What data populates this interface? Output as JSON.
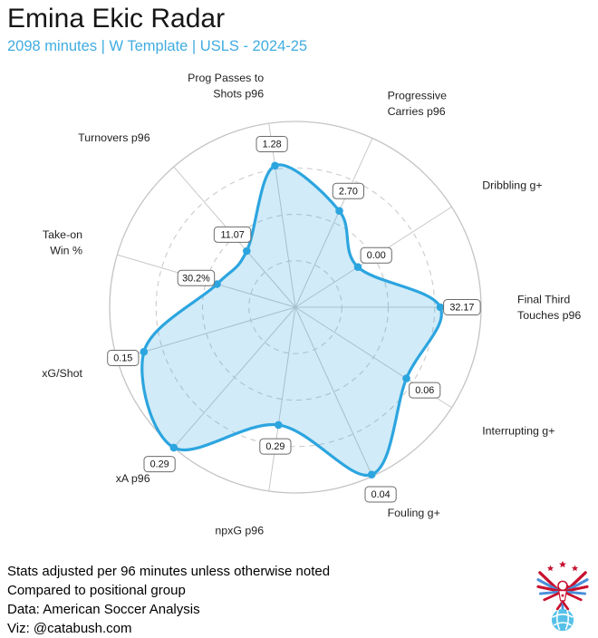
{
  "header": {
    "title": "Emina Ekic Radar",
    "subtitle": "2098 minutes | W Template | USLS - 2024-25"
  },
  "footer": {
    "lines": [
      "Stats adjusted per 96 minutes unless otherwise noted",
      "Compared to positional group",
      "Data: American Soccer Analysis",
      "Viz: @catabush.com"
    ]
  },
  "logo": {
    "description": "American Soccer Analysis eagle with stars and ball"
  },
  "colors": {
    "accent_line": "#2CA5DF",
    "area_fill": "#2CA5DF",
    "subtitle_blue": "#41ACE1",
    "grid": "#C8C8C8",
    "ring_dash": "#CBCBCB",
    "outer_circle": "#C4C4C4",
    "label_box_border": "#6B6B6B",
    "axis_label_text": "#1F1F1F",
    "value_text": "#111111",
    "logo_red": "#C8102E",
    "logo_blue": "#4A90D9",
    "ball_blue": "#56C1E8"
  },
  "chart_data": {
    "type": "radar",
    "title": "Emina Ekic Radar",
    "scale": "percentile 0-100 vs positional group",
    "rings_pct": [
      25,
      50,
      75,
      100
    ],
    "grid": "dashed quartile rings, solid spokes, solid outer circle",
    "direction": "counterclockwise",
    "axes": [
      {
        "label": [
          "Final Third",
          "Touches p96"
        ],
        "value": "32.17",
        "percentile": 78,
        "angle_deg": 0
      },
      {
        "label": [
          "Dribbling g+"
        ],
        "value": "0.00",
        "percentile": 40,
        "angle_deg": 32.7
      },
      {
        "label": [
          "Progressive",
          "Carries p96"
        ],
        "value": "2.70",
        "percentile": 57,
        "angle_deg": 65.5
      },
      {
        "label": [
          "Prog Passes to",
          "Shots p96"
        ],
        "value": "1.28",
        "percentile": 77,
        "angle_deg": 98.2
      },
      {
        "label": [
          "Turnovers p96"
        ],
        "value": "11.07",
        "percentile": 40,
        "angle_deg": 130.9
      },
      {
        "label": [
          "Take-on",
          "Win %"
        ],
        "value": "30.2%",
        "percentile": 44,
        "angle_deg": 163.6
      },
      {
        "label": [
          "xG/Shot"
        ],
        "value": "0.15",
        "percentile": 85,
        "angle_deg": 196.4
      },
      {
        "label": [
          "xA p96"
        ],
        "value": "0.29",
        "percentile": 100,
        "angle_deg": 229.1
      },
      {
        "label": [
          "npxG p96"
        ],
        "value": "0.29",
        "percentile": 64,
        "angle_deg": 261.8
      },
      {
        "label": [
          "Fouling g+"
        ],
        "value": "0.04",
        "percentile": 99,
        "angle_deg": 294.5
      },
      {
        "label": [
          "Interrupting g+"
        ],
        "value": "0.06",
        "percentile": 71,
        "angle_deg": 327.3
      }
    ]
  }
}
